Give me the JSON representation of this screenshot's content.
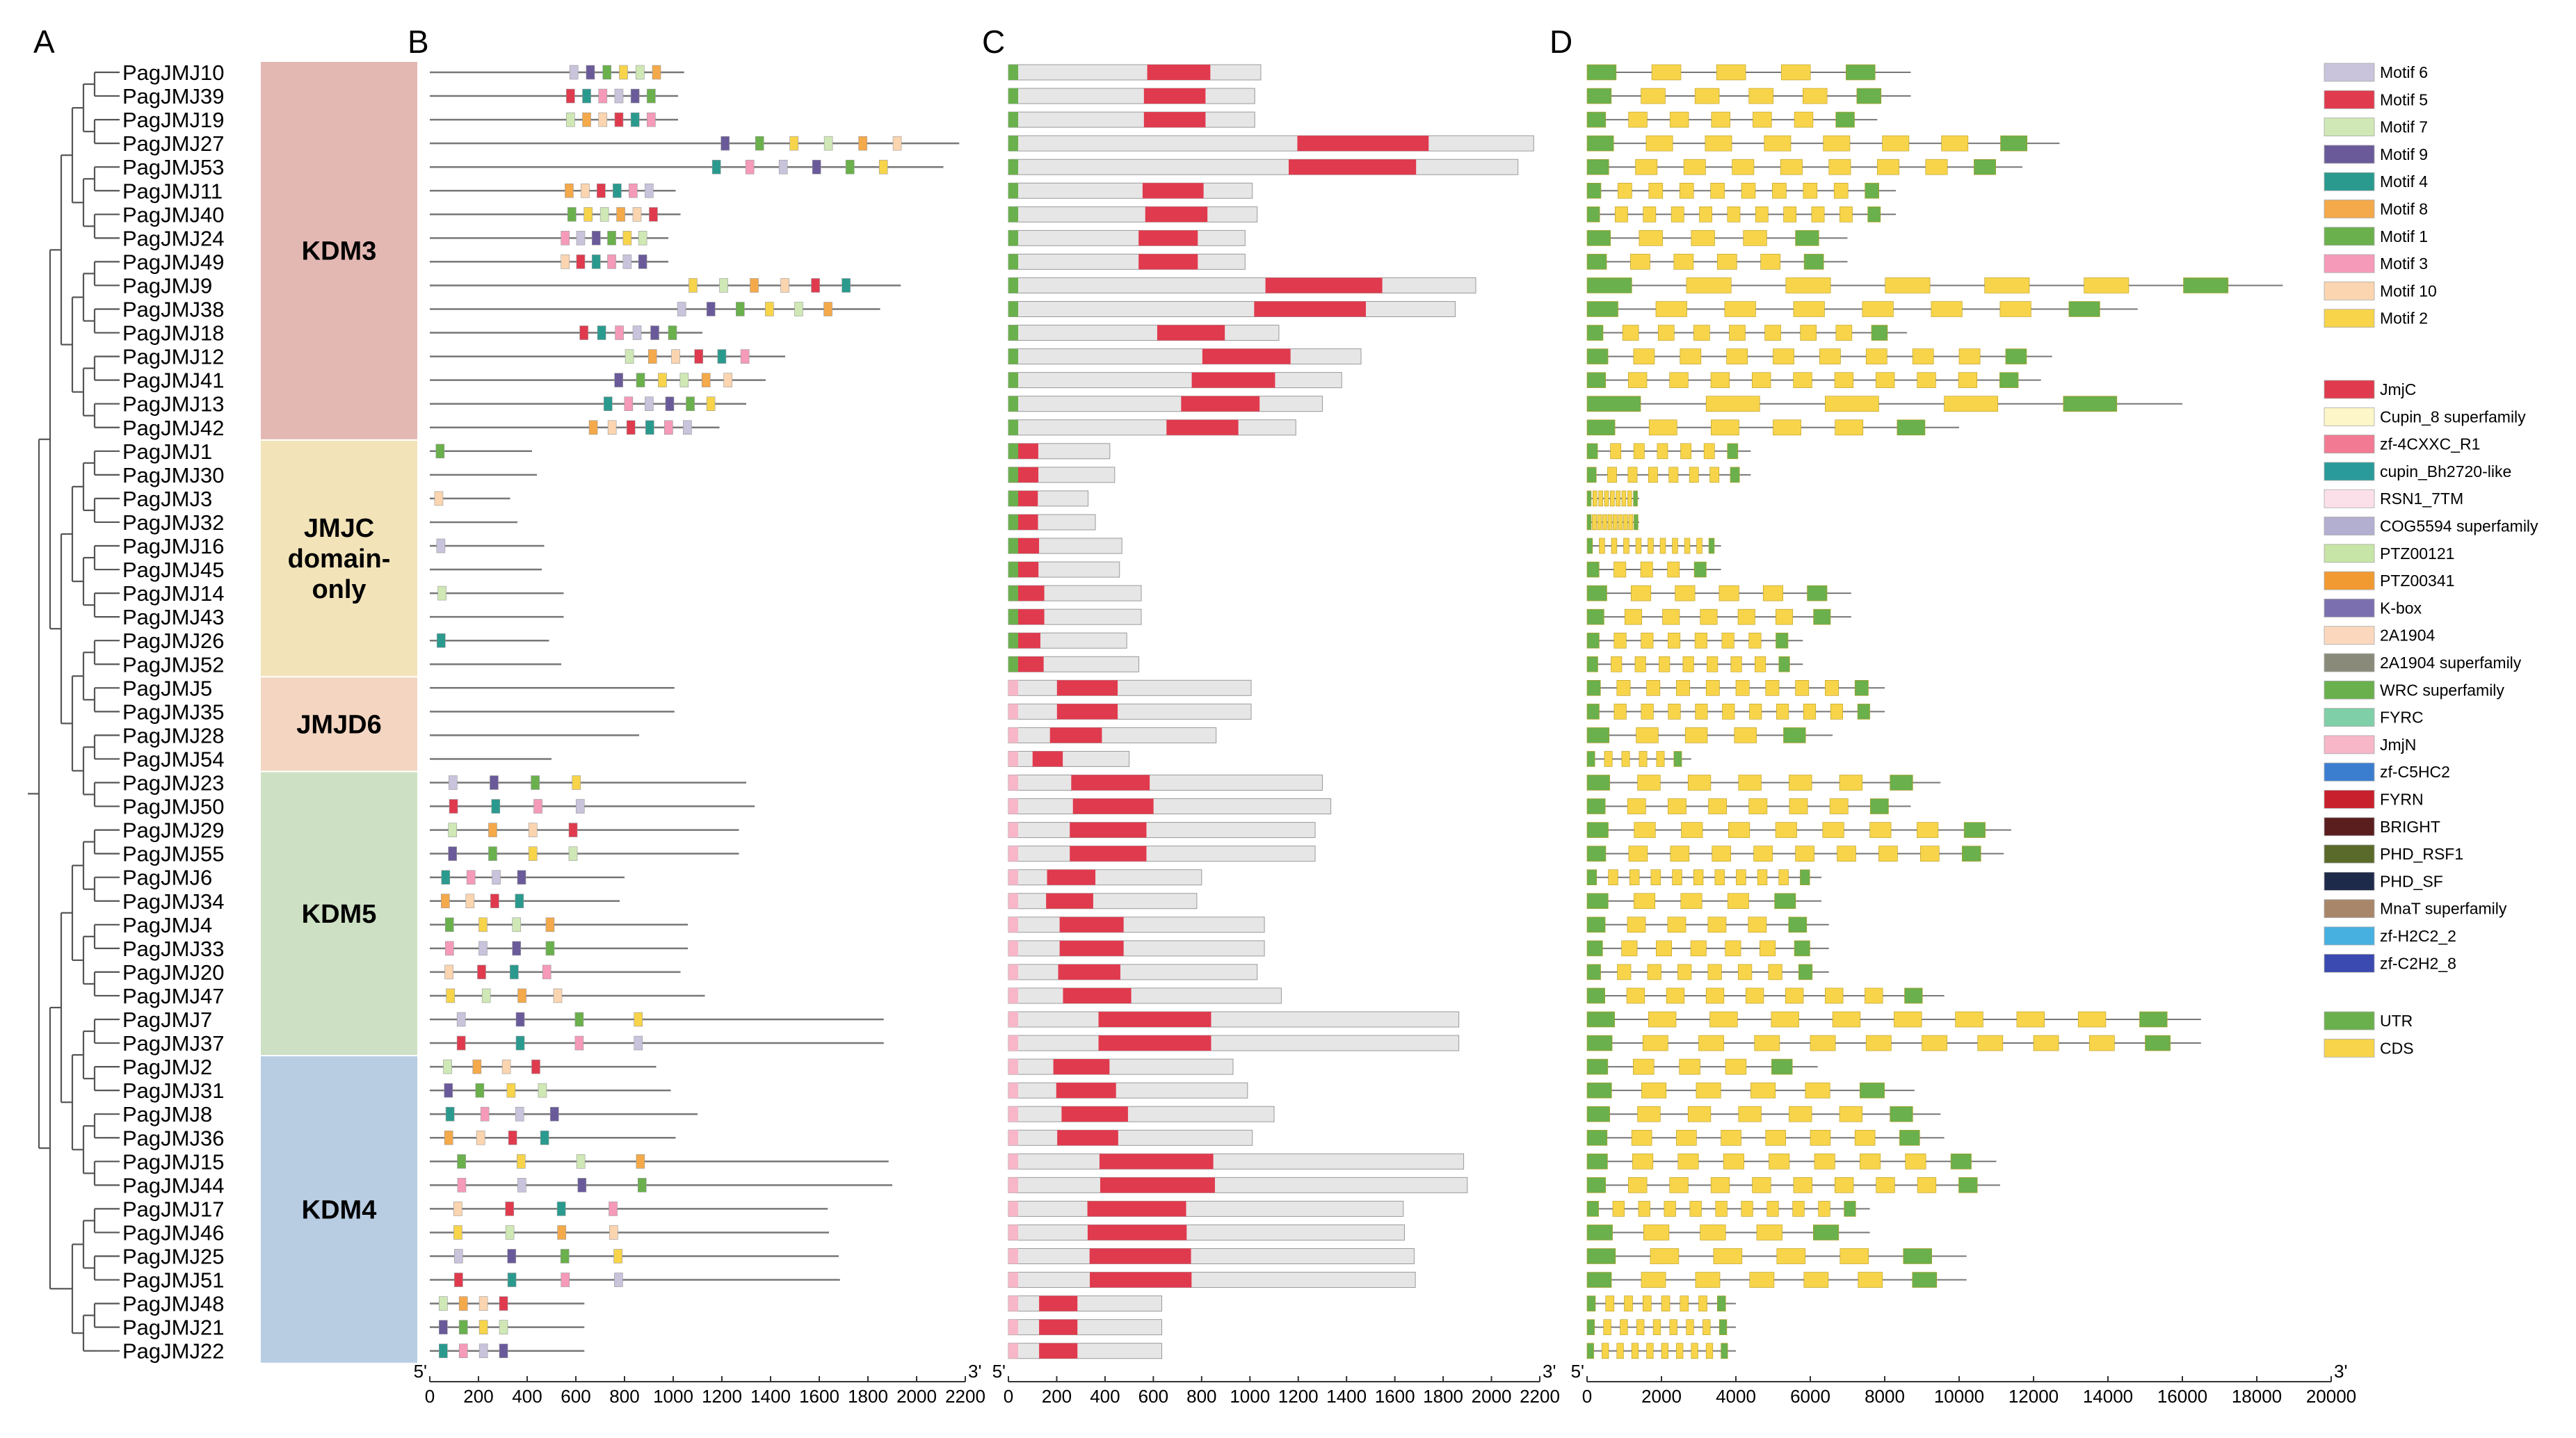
{
  "panel_labels": [
    "A",
    "B",
    "C",
    "D"
  ],
  "genes": [
    "PagJMJ10",
    "PagJMJ39",
    "PagJMJ19",
    "PagJMJ27",
    "PagJMJ53",
    "PagJMJ11",
    "PagJMJ40",
    "PagJMJ24",
    "PagJMJ49",
    "PagJMJ9",
    "PagJMJ38",
    "PagJMJ18",
    "PagJMJ12",
    "PagJMJ41",
    "PagJMJ13",
    "PagJMJ42",
    "PagJMJ1",
    "PagJMJ30",
    "PagJMJ3",
    "PagJMJ32",
    "PagJMJ16",
    "PagJMJ45",
    "PagJMJ14",
    "PagJMJ43",
    "PagJMJ26",
    "PagJMJ52",
    "PagJMJ5",
    "PagJMJ35",
    "PagJMJ28",
    "PagJMJ54",
    "PagJMJ23",
    "PagJMJ50",
    "PagJMJ29",
    "PagJMJ55",
    "PagJMJ6",
    "PagJMJ34",
    "PagJMJ4",
    "PagJMJ33",
    "PagJMJ20",
    "PagJMJ47",
    "PagJMJ7",
    "PagJMJ37",
    "PagJMJ2",
    "PagJMJ31",
    "PagJMJ8",
    "PagJMJ36",
    "PagJMJ15",
    "PagJMJ44",
    "PagJMJ17",
    "PagJMJ46",
    "PagJMJ25",
    "PagJMJ51",
    "PagJMJ48",
    "PagJMJ21",
    "PagJMJ22"
  ],
  "groups": [
    {
      "name": "KDM3",
      "lines": [
        "KDM3"
      ],
      "first": 0,
      "last": 15,
      "color": "#e3b8b3"
    },
    {
      "name": "JMJC domain-only",
      "lines": [
        "JMJC",
        "domain-",
        "only"
      ],
      "first": 16,
      "last": 25,
      "color": "#f2e3b9"
    },
    {
      "name": "JMJD6",
      "lines": [
        "JMJD6"
      ],
      "first": 26,
      "last": 29,
      "color": "#f3d5c1"
    },
    {
      "name": "KDM5",
      "lines": [
        "KDM5"
      ],
      "first": 30,
      "last": 41,
      "color": "#cde0c4"
    },
    {
      "name": "KDM4",
      "lines": [
        "KDM4"
      ],
      "first": 42,
      "last": 54,
      "color": "#b8cce2"
    }
  ],
  "end_labels": {
    "five_prime": "5'",
    "three_prime": "3'"
  },
  "axes": {
    "motif": {
      "ticks": [
        0,
        200,
        400,
        600,
        800,
        1000,
        1200,
        1400,
        1600,
        1800,
        2000,
        2200
      ],
      "labels": [
        "0",
        "200",
        "400",
        "600",
        "800",
        "1000",
        "1200",
        "1400",
        "1600",
        "1800",
        "2000",
        "2200"
      ],
      "max": 2200
    },
    "domain": {
      "ticks": [
        0,
        200,
        400,
        600,
        800,
        1000,
        1200,
        1400,
        1600,
        1800,
        2000,
        2200
      ],
      "labels": [
        "0",
        "200",
        "400",
        "600",
        "800",
        "1000",
        "1200",
        "1400",
        "1600",
        "1800",
        "2000",
        "2200"
      ],
      "max": 2200
    },
    "gene": {
      "ticks": [
        0,
        2000,
        4000,
        6000,
        8000,
        10000,
        12000,
        14000,
        16000,
        18000,
        20000
      ],
      "labels": [
        "0",
        "2000",
        "4000",
        "6000",
        "8000",
        "10000",
        "12000",
        "14000",
        "16000",
        "18000",
        "20000"
      ],
      "max": 20000
    }
  },
  "motif_legend": [
    {
      "label": "Motif 6",
      "color": "#c9c3dc"
    },
    {
      "label": "Motif 5",
      "color": "#e03a4e"
    },
    {
      "label": "Motif 7",
      "color": "#cfe8b5"
    },
    {
      "label": "Motif 9",
      "color": "#6a5a9a"
    },
    {
      "label": "Motif 4",
      "color": "#2a9a8e"
    },
    {
      "label": "Motif 8",
      "color": "#f4a94a"
    },
    {
      "label": "Motif 1",
      "color": "#6ab04c"
    },
    {
      "label": "Motif 3",
      "color": "#f59ab8"
    },
    {
      "label": "Motif 10",
      "color": "#fbd5b0"
    },
    {
      "label": "Motif 2",
      "color": "#f7d44a"
    }
  ],
  "domain_legend": [
    {
      "label": "JmjC",
      "color": "#e03a4e"
    },
    {
      "label": "Cupin_8 superfamily",
      "color": "#fdf6c8"
    },
    {
      "label": "zf-4CXXC_R1",
      "color": "#f27a92"
    },
    {
      "label": "cupin_Bh2720-like",
      "color": "#2a9a9a"
    },
    {
      "label": "RSN1_7TM",
      "color": "#fbe0ea"
    },
    {
      "label": "COG5594 superfamily",
      "color": "#b3afd0"
    },
    {
      "label": "PTZ00121",
      "color": "#c6e5a6"
    },
    {
      "label": "PTZ00341",
      "color": "#f19a32"
    },
    {
      "label": "K-box",
      "color": "#7b6fb0"
    },
    {
      "label": "2A1904",
      "color": "#fbd8bd"
    },
    {
      "label": "2A1904 superfamily",
      "color": "#8a8a7a"
    },
    {
      "label": "WRC superfamily",
      "color": "#6ab04c"
    },
    {
      "label": "FYRC",
      "color": "#7fcfa8"
    },
    {
      "label": "JmjN",
      "color": "#f7b7c9"
    },
    {
      "label": "zf-C5HC2",
      "color": "#3b7ed0"
    },
    {
      "label": "FYRN",
      "color": "#c8202c"
    },
    {
      "label": "BRIGHT",
      "color": "#5a1e1e"
    },
    {
      "label": "PHD_RSF1",
      "color": "#5a6a2a"
    },
    {
      "label": "PHD_SF",
      "color": "#1e2a4a"
    },
    {
      "label": "MnaT superfamily",
      "color": "#a8866a"
    },
    {
      "label": "zf-H2C2_2",
      "color": "#48b0e0"
    },
    {
      "label": "zf-C2H2_8",
      "color": "#3a4ab0"
    }
  ],
  "structure_legend": [
    {
      "label": "UTR",
      "color": "#6ab04c"
    },
    {
      "label": "CDS",
      "color": "#f7d44a"
    }
  ],
  "protein_lengths": [
    1045,
    1020,
    1020,
    2175,
    2110,
    1010,
    1030,
    980,
    980,
    1935,
    1850,
    1120,
    1460,
    1380,
    1300,
    1190,
    420,
    440,
    330,
    360,
    470,
    460,
    550,
    550,
    490,
    540,
    1005,
    1005,
    860,
    500,
    1300,
    1335,
    1270,
    1270,
    800,
    780,
    1060,
    1060,
    1030,
    1130,
    1865,
    1865,
    930,
    990,
    1100,
    1010,
    1885,
    1900,
    1635,
    1640,
    1680,
    1685,
    635,
    635,
    635
  ],
  "gene_lengths": [
    8700,
    8700,
    7800,
    12700,
    11700,
    8300,
    8300,
    7000,
    7000,
    18700,
    14800,
    8600,
    12500,
    12200,
    16000,
    10000,
    4400,
    4400,
    1400,
    1400,
    3600,
    3600,
    7100,
    7100,
    5800,
    5800,
    8000,
    8000,
    6600,
    2800,
    9500,
    8700,
    11400,
    11200,
    6300,
    6300,
    6500,
    6500,
    6500,
    9600,
    16500,
    16500,
    6200,
    8800,
    9500,
    9600,
    11000,
    11100,
    7600,
    7600,
    10200,
    10200,
    4000,
    4000,
    4000
  ]
}
